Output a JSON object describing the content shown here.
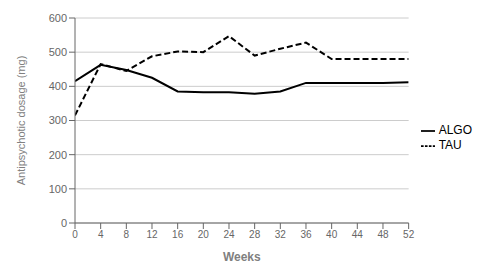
{
  "chart_data": {
    "type": "line",
    "x": [
      0,
      4,
      8,
      12,
      16,
      20,
      24,
      28,
      32,
      36,
      40,
      44,
      48,
      52
    ],
    "series": [
      {
        "name": "ALGO",
        "color": "#000000",
        "line_style": "solid",
        "values": [
          415,
          463,
          448,
          425,
          385,
          383,
          383,
          378,
          385,
          410,
          410,
          410,
          410,
          412
        ]
      },
      {
        "name": "TAU",
        "color": "#000000",
        "line_style": "dashed",
        "values": [
          315,
          465,
          445,
          488,
          502,
          500,
          547,
          490,
          510,
          528,
          480,
          480,
          480,
          480
        ]
      }
    ],
    "xlabel": "Weeks",
    "ylabel": "Antipsychotic dosage (mg)",
    "xlim": [
      0,
      52
    ],
    "ylim": [
      0,
      600
    ],
    "xticks": [
      0,
      4,
      8,
      12,
      16,
      20,
      24,
      28,
      32,
      36,
      40,
      44,
      48,
      52
    ],
    "yticks": [
      0,
      100,
      200,
      300,
      400,
      500,
      600
    ],
    "grid": true,
    "legend": "right"
  }
}
